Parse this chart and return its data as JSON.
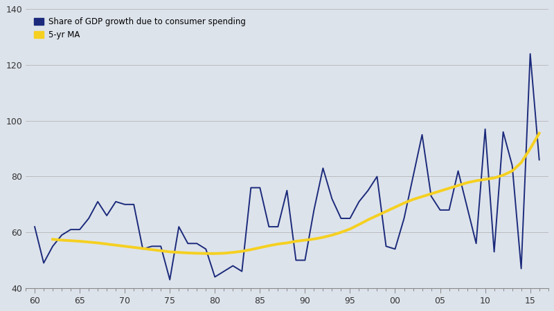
{
  "ylim": [
    40,
    140
  ],
  "yticks": [
    40,
    60,
    80,
    100,
    120,
    140
  ],
  "xtick_positions": [
    60,
    65,
    70,
    75,
    80,
    85,
    90,
    95,
    100,
    105,
    110,
    115
  ],
  "xtick_labels": [
    "60",
    "65",
    "70",
    "75",
    "80",
    "85",
    "90",
    "95",
    "00",
    "05",
    "10",
    "15"
  ],
  "xlim_left": 59,
  "xlim_right": 117,
  "line_color": "#1b2a7b",
  "ma_color": "#f5d020",
  "bg_color": "#dde3eb",
  "legend_line_label": "Share of GDP growth due to consumer spending",
  "legend_ma_label": "5-yr MA",
  "years": [
    60,
    61,
    62,
    63,
    64,
    65,
    66,
    67,
    68,
    69,
    70,
    71,
    72,
    73,
    74,
    75,
    76,
    77,
    78,
    79,
    80,
    81,
    82,
    83,
    84,
    85,
    86,
    87,
    88,
    89,
    90,
    91,
    92,
    93,
    94,
    95,
    96,
    97,
    98,
    99,
    100,
    101,
    102,
    103,
    104,
    105,
    106,
    107,
    108,
    109,
    110,
    111,
    112,
    113,
    114,
    115,
    116
  ],
  "values": [
    62,
    49,
    55,
    59,
    61,
    61,
    65,
    71,
    66,
    71,
    70,
    70,
    54,
    55,
    55,
    43,
    62,
    56,
    56,
    54,
    44,
    46,
    48,
    46,
    76,
    76,
    62,
    62,
    75,
    50,
    50,
    68,
    83,
    72,
    65,
    65,
    71,
    75,
    80,
    55,
    54,
    65,
    80,
    95,
    73,
    68,
    68,
    82,
    69,
    56,
    97,
    53,
    96,
    84,
    47,
    124,
    86
  ],
  "ma_years": [
    62,
    63,
    64,
    65,
    66,
    67,
    68,
    69,
    70,
    71,
    72,
    73,
    74,
    75,
    76,
    77,
    78,
    79,
    80,
    81,
    82,
    83,
    84,
    85,
    86,
    87,
    88,
    89,
    90,
    91,
    92,
    93,
    94,
    95,
    96,
    97,
    98,
    99,
    100,
    101,
    102,
    103,
    104,
    105,
    106,
    107,
    108,
    109,
    110,
    111,
    112,
    113,
    114,
    115,
    116
  ],
  "ma_values": [
    57.5,
    57.2,
    57.0,
    56.8,
    56.5,
    56.2,
    55.8,
    55.4,
    55.0,
    54.6,
    54.2,
    53.8,
    53.4,
    53.0,
    52.8,
    52.6,
    52.5,
    52.4,
    52.4,
    52.5,
    52.8,
    53.2,
    53.8,
    54.5,
    55.2,
    55.8,
    56.2,
    56.8,
    57.2,
    57.6,
    58.2,
    59.0,
    60.0,
    61.2,
    62.8,
    64.5,
    66.0,
    67.5,
    69.0,
    70.5,
    71.8,
    72.8,
    73.8,
    74.8,
    75.8,
    76.8,
    77.8,
    78.5,
    79.0,
    79.5,
    80.5,
    82.0,
    85.0,
    90.0,
    95.5
  ]
}
